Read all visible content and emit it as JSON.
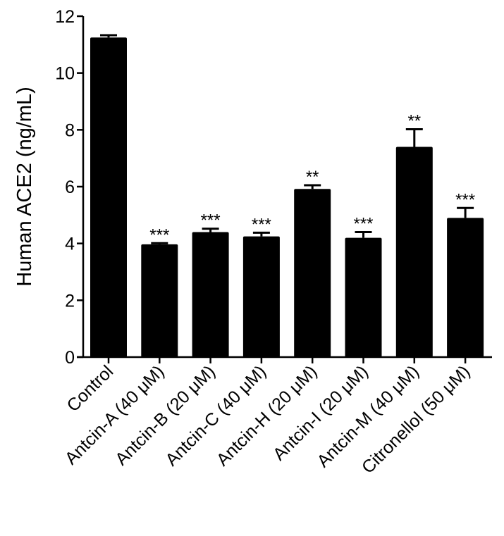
{
  "chart_data": {
    "type": "bar",
    "title": "",
    "xlabel": "",
    "ylabel": "Human ACE2 (ng/mL)",
    "ylim": [
      0,
      12
    ],
    "yticks": [
      0,
      2,
      4,
      6,
      8,
      10,
      12
    ],
    "grid": false,
    "legend": null,
    "categories": [
      "Control",
      "Antcin-A (40 μM)",
      "Antcin-B (20 μM)",
      "Antcin-C (40 μM)",
      "Antcin-H (20 μM)",
      "Antcin-I (20 μM)",
      "Antcin-M (40 μM)",
      "Citronellol (50 μM)"
    ],
    "values": [
      11.25,
      3.97,
      4.4,
      4.25,
      5.92,
      4.2,
      7.4,
      4.9
    ],
    "errors": [
      0.08,
      0.04,
      0.12,
      0.13,
      0.13,
      0.2,
      0.62,
      0.35
    ],
    "significance": [
      "",
      "***",
      "***",
      "***",
      "**",
      "***",
      "**",
      "***"
    ],
    "bar_color": "#000000"
  }
}
